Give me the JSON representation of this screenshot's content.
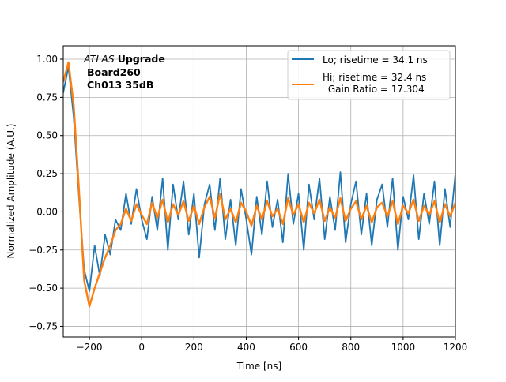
{
  "chart_data": {
    "type": "line",
    "xlabel": "Time [ns]",
    "ylabel": "Normalized Amplitude (A.U.)",
    "xlim": [
      -300,
      1200
    ],
    "ylim": [
      -0.82,
      1.088
    ],
    "xticks": [
      -200,
      0,
      200,
      400,
      600,
      800,
      1000,
      1200
    ],
    "yticks": [
      -0.75,
      -0.5,
      -0.25,
      0.0,
      0.25,
      0.5,
      0.75,
      1.0
    ],
    "xtick_labels": [
      "−200",
      "0",
      "200",
      "400",
      "600",
      "800",
      "1000",
      "1200"
    ],
    "ytick_labels": [
      "−0.75",
      "−0.50",
      "−0.25",
      "0.00",
      "0.25",
      "0.50",
      "0.75",
      "1.00"
    ],
    "grid": true,
    "legend_placement": "top-right",
    "annotation": {
      "italic": "ATLAS",
      "bold": "Upgrade",
      "line2": "Board260",
      "line3": "Ch013 35dB"
    },
    "x": [
      -300,
      -280,
      -260,
      -240,
      -220,
      -200,
      -180,
      -160,
      -140,
      -120,
      -100,
      -80,
      -60,
      -40,
      -20,
      0,
      20,
      40,
      60,
      80,
      100,
      120,
      140,
      160,
      180,
      200,
      220,
      240,
      260,
      280,
      300,
      320,
      340,
      360,
      380,
      400,
      420,
      440,
      460,
      480,
      500,
      520,
      540,
      560,
      580,
      600,
      620,
      640,
      660,
      680,
      700,
      720,
      740,
      760,
      780,
      800,
      820,
      840,
      860,
      880,
      900,
      920,
      940,
      960,
      980,
      1000,
      1020,
      1040,
      1060,
      1080,
      1100,
      1120,
      1140,
      1160,
      1180,
      1200
    ],
    "series": [
      {
        "name": "Lo; risetime = 34.1 ns",
        "color": "#1f77b4",
        "values": [
          0.78,
          0.95,
          0.62,
          0.1,
          -0.38,
          -0.52,
          -0.22,
          -0.42,
          -0.15,
          -0.28,
          -0.05,
          -0.12,
          0.12,
          -0.08,
          0.15,
          -0.05,
          -0.18,
          0.1,
          -0.12,
          0.22,
          -0.25,
          0.18,
          -0.05,
          0.2,
          -0.15,
          0.12,
          -0.3,
          0.05,
          0.18,
          -0.12,
          0.22,
          -0.18,
          0.08,
          -0.22,
          0.15,
          -0.05,
          -0.28,
          0.1,
          -0.15,
          0.2,
          -0.1,
          0.08,
          -0.2,
          0.25,
          -0.08,
          0.12,
          -0.25,
          0.18,
          -0.05,
          0.22,
          -0.18,
          0.1,
          -0.12,
          0.26,
          -0.2,
          0.05,
          0.2,
          -0.15,
          0.12,
          -0.22,
          0.08,
          0.18,
          -0.1,
          0.22,
          -0.25,
          0.1,
          -0.05,
          0.24,
          -0.18,
          0.12,
          -0.08,
          0.2,
          -0.22,
          0.15,
          -0.1,
          0.25
        ]
      },
      {
        "name": "Hi; risetime = 32.4 ns",
        "name_line2": " Gain Ratio = 17.304",
        "color": "#ff7f0e",
        "values": [
          0.85,
          0.98,
          0.7,
          0.15,
          -0.45,
          -0.62,
          -0.5,
          -0.4,
          -0.3,
          -0.22,
          -0.12,
          -0.08,
          0.02,
          -0.06,
          0.05,
          -0.02,
          -0.08,
          0.06,
          -0.04,
          0.08,
          -0.07,
          0.05,
          -0.02,
          0.07,
          -0.06,
          0.04,
          -0.08,
          0.03,
          0.1,
          -0.04,
          0.12,
          -0.05,
          0.02,
          -0.07,
          0.06,
          0.0,
          -0.09,
          0.04,
          -0.05,
          0.07,
          -0.03,
          0.02,
          -0.08,
          0.09,
          -0.02,
          0.05,
          -0.07,
          0.06,
          -0.01,
          0.08,
          -0.06,
          0.03,
          -0.04,
          0.09,
          -0.06,
          0.02,
          0.07,
          -0.05,
          0.04,
          -0.07,
          0.03,
          0.06,
          -0.03,
          0.07,
          -0.08,
          0.04,
          -0.01,
          0.08,
          -0.06,
          0.04,
          -0.02,
          0.07,
          -0.07,
          0.05,
          -0.03,
          0.06
        ]
      }
    ]
  }
}
